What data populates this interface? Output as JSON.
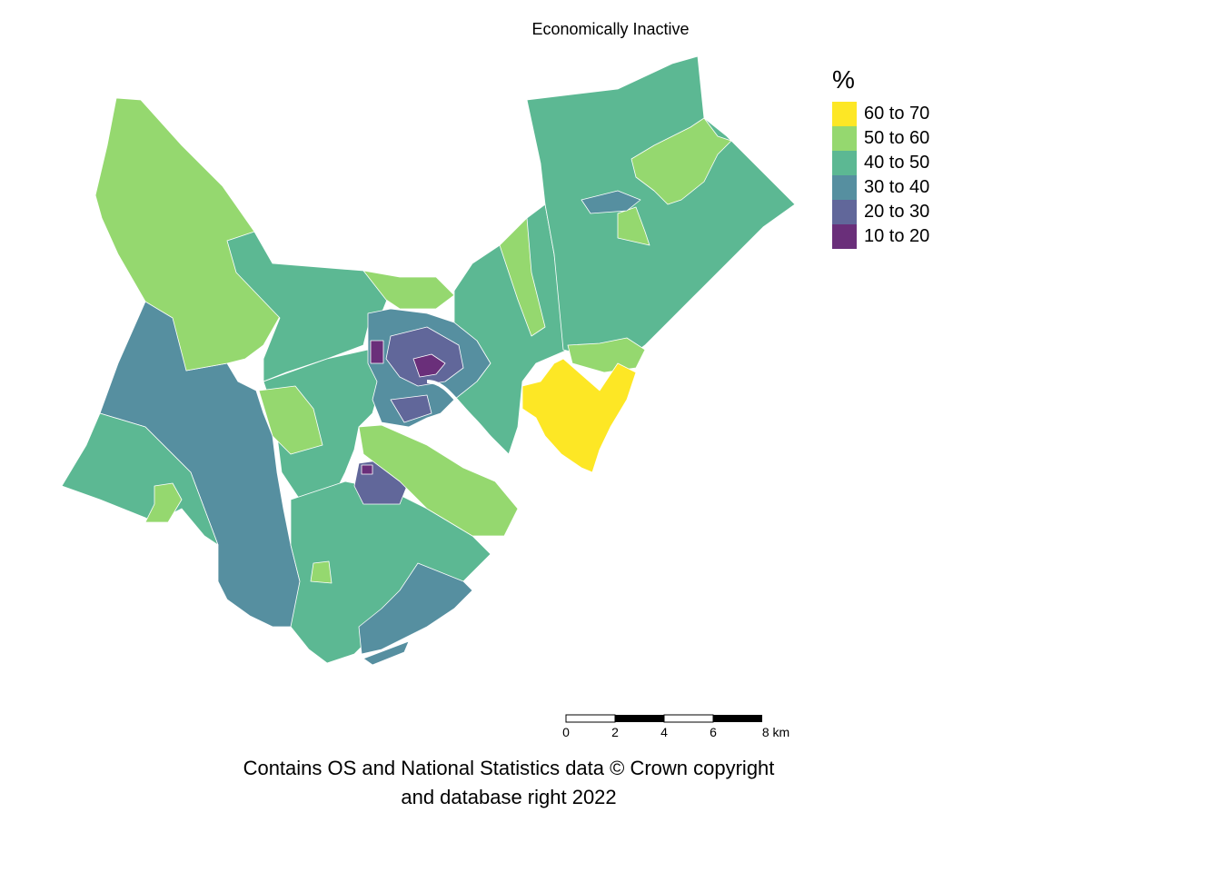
{
  "map": {
    "title": "Economically Inactive",
    "caption_line1": "Contains OS and National Statistics data © Crown copyright",
    "caption_line2": "and database right 2022"
  },
  "legend": {
    "title": "%",
    "items": [
      {
        "label": "60 to 70",
        "color": "#fde725"
      },
      {
        "label": "50 to 60",
        "color": "#95d86f"
      },
      {
        "label": "40 to 50",
        "color": "#5cb893"
      },
      {
        "label": "30 to 40",
        "color": "#568fa0"
      },
      {
        "label": "20 to 30",
        "color": "#61679a"
      },
      {
        "label": "10 to 20",
        "color": "#6a2f7a"
      }
    ]
  },
  "scalebar": {
    "ticks": [
      "0",
      "2",
      "4",
      "6",
      "8 km"
    ]
  }
}
